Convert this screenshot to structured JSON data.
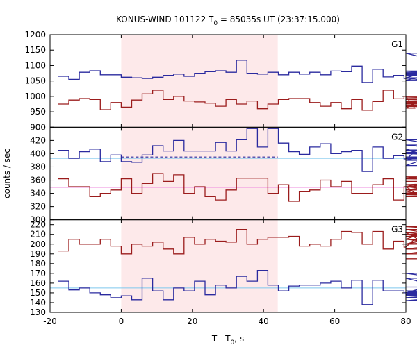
{
  "chart_data": {
    "type": "line",
    "title_main": "KONUS-WIND 101122 T",
    "title_sub": "0",
    "title_rest": " = 85035s UT (23:37:15.000)",
    "xlabel_main": "T - T",
    "xlabel_sub": "0",
    "xlabel_rest": ", s",
    "ylabel": "counts / sec",
    "xlim": [
      -20,
      80
    ],
    "x_ticks": [
      "-20",
      "0",
      "20",
      "40",
      "60",
      "80"
    ],
    "highlight": {
      "from": 0,
      "to": 44,
      "color": "#fde9ea"
    },
    "bin_start": -17.664,
    "bin_width": 2.944,
    "colors": {
      "upper": "#2a2a9f",
      "lower": "#9b1c1c",
      "upper_bg": "#7ec8ee",
      "lower_bg": "#ee88dd"
    },
    "panels": [
      {
        "label": "G1",
        "ylim": [
          900,
          1200
        ],
        "y_ticks": [
          "900",
          "950",
          "1000",
          "1050",
          "1100",
          "1150",
          "1200"
        ],
        "upper": {
          "name": "",
          "values": [
            1065,
            1055,
            1078,
            1083,
            1070,
            1070,
            1062,
            1060,
            1058,
            1062,
            1068,
            1072,
            1065,
            1075,
            1080,
            1083,
            1078,
            1117,
            1075,
            1072,
            1078,
            1070,
            1078,
            1072,
            1078,
            1070,
            1082,
            1080,
            1098,
            1045,
            1088,
            1063,
            1068,
            1058,
            1060,
            1052,
            1075,
            1082,
            1072,
            1070,
            1060,
            1140,
            1068,
            1070,
            1078,
            1075,
            1070,
            1068,
            1073
          ],
          "background": 1073
        },
        "lower": {
          "name": "",
          "values": [
            975,
            988,
            993,
            990,
            957,
            980,
            965,
            988,
            1008,
            1020,
            990,
            1000,
            985,
            982,
            978,
            968,
            990,
            975,
            985,
            960,
            975,
            990,
            993,
            993,
            980,
            968,
            980,
            960,
            990,
            955,
            983,
            1020,
            992,
            1000,
            962,
            992,
            993,
            990,
            985,
            970,
            980,
            967,
            983,
            975,
            998,
            983,
            993,
            978,
            985
          ],
          "background": 985
        }
      },
      {
        "label": "G2",
        "ylim": [
          300,
          440
        ],
        "y_ticks": [
          "300",
          "320",
          "340",
          "360",
          "380",
          "400",
          "420",
          "440"
        ],
        "upper": {
          "name": "",
          "values": [
            405,
            393,
            403,
            407,
            388,
            398,
            388,
            387,
            398,
            412,
            404,
            420,
            404,
            404,
            404,
            417,
            404,
            421,
            438,
            410,
            438,
            416,
            403,
            399,
            410,
            415,
            400,
            403,
            405,
            373,
            410,
            393,
            397,
            392,
            402,
            400,
            413,
            407,
            382,
            413,
            402,
            390,
            421,
            395,
            392,
            400,
            392,
            405,
            393
          ],
          "background": 393
        },
        "upper_dash": {
          "from": 0,
          "to": 44,
          "value": 395
        },
        "lower": {
          "name": "",
          "values": [
            362,
            350,
            350,
            335,
            340,
            345,
            362,
            340,
            355,
            370,
            358,
            368,
            340,
            350,
            335,
            330,
            345,
            363,
            363,
            363,
            340,
            353,
            328,
            343,
            345,
            360,
            350,
            358,
            340,
            340,
            353,
            362,
            330,
            350,
            342,
            350,
            345,
            353,
            338,
            335,
            340,
            350,
            365,
            350,
            353,
            362,
            362,
            362,
            358
          ],
          "background": 349
        }
      },
      {
        "label": "G3",
        "ylim": [
          130,
          225
        ],
        "y_ticks": [
          "130",
          "140",
          "150",
          "160",
          "170",
          "180",
          "190",
          "200",
          "210",
          "220"
        ],
        "upper": {
          "name": "",
          "values": [
            162,
            153,
            155,
            150,
            148,
            145,
            147,
            143,
            165,
            152,
            143,
            155,
            152,
            162,
            148,
            158,
            155,
            167,
            162,
            173,
            158,
            152,
            157,
            158,
            158,
            160,
            162,
            155,
            163,
            138,
            163,
            152,
            152,
            150,
            148,
            152,
            148,
            150,
            165,
            150,
            147,
            145,
            152,
            147,
            150,
            170,
            152,
            142,
            156
          ],
          "background": 155
        },
        "lower": {
          "name": "",
          "values": [
            193,
            205,
            200,
            200,
            205,
            198,
            190,
            200,
            198,
            202,
            195,
            190,
            207,
            200,
            205,
            203,
            202,
            215,
            200,
            205,
            207,
            207,
            208,
            198,
            200,
            198,
            205,
            213,
            212,
            200,
            213,
            195,
            203,
            197,
            205,
            212,
            195,
            200,
            215,
            205,
            200,
            218,
            212,
            200,
            208,
            205,
            190,
            210,
            185
          ],
          "background": 198
        }
      }
    ]
  }
}
